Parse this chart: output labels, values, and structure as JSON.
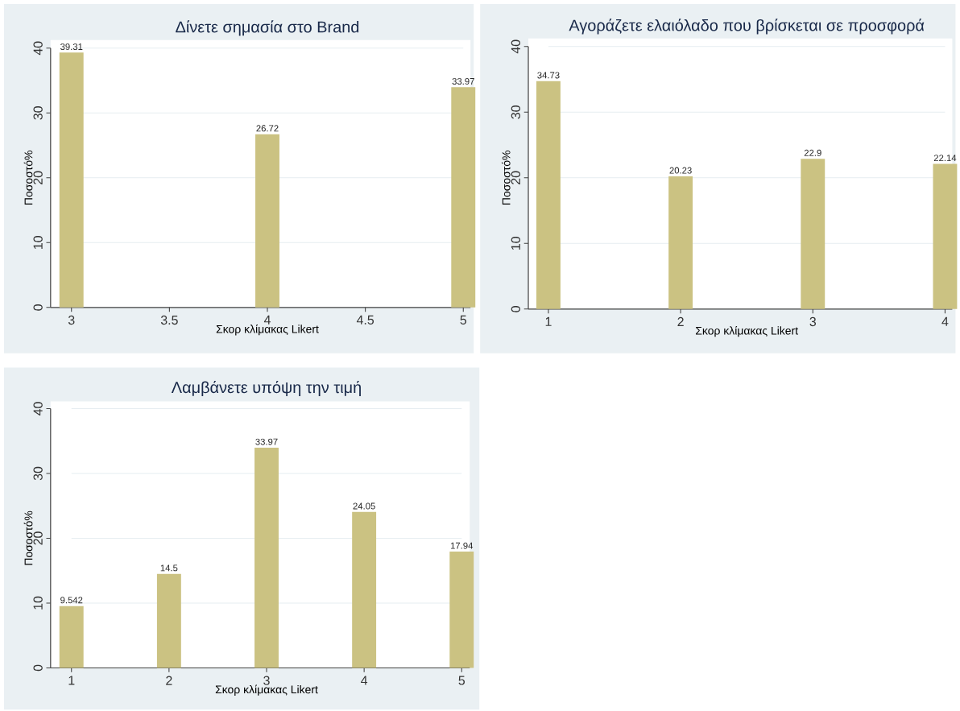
{
  "chart_data": [
    {
      "type": "bar",
      "title": "Δίνετε σημασία στο Brand",
      "xlabel": "Σκορ κλίμακας Likert",
      "ylabel": "Ποσοστό%",
      "x": [
        3,
        4,
        5
      ],
      "values": [
        39.31,
        26.72,
        33.97
      ],
      "color": "#cbc282",
      "xlim": [
        3,
        5
      ],
      "xticks": [
        3,
        3.5,
        4,
        4.5,
        5
      ],
      "ylim": [
        0,
        40
      ],
      "yticks": [
        0,
        10,
        20,
        30,
        40
      ],
      "grid": "y",
      "data_labels": true
    },
    {
      "type": "bar",
      "title": "Αγοράζετε ελαιόλαδο που βρίσκεται σε προσφορά",
      "xlabel": "Σκορ κλίμακας Likert",
      "ylabel": "Ποσοστό%",
      "x": [
        1,
        2,
        3,
        4
      ],
      "values": [
        34.73,
        20.23,
        22.9,
        22.14
      ],
      "color": "#cbc282",
      "xlim": [
        1,
        4
      ],
      "xticks": [
        1,
        2,
        3,
        4
      ],
      "ylim": [
        0,
        40
      ],
      "yticks": [
        0,
        10,
        20,
        30,
        40
      ],
      "grid": "y",
      "data_labels": true
    },
    {
      "type": "bar",
      "title": "Λαμβάνετε υπόψη την τιμή",
      "xlabel": "Σκορ κλίμακας Likert",
      "ylabel": "Ποσοστό%",
      "x": [
        1,
        2,
        3,
        4,
        5
      ],
      "values": [
        9.542,
        14.5,
        33.97,
        24.05,
        17.94
      ],
      "color": "#cbc282",
      "xlim": [
        1,
        5
      ],
      "xticks": [
        1,
        2,
        3,
        4,
        5
      ],
      "ylim": [
        0,
        40
      ],
      "yticks": [
        0,
        10,
        20,
        30,
        40
      ],
      "grid": "y",
      "data_labels": true
    }
  ]
}
